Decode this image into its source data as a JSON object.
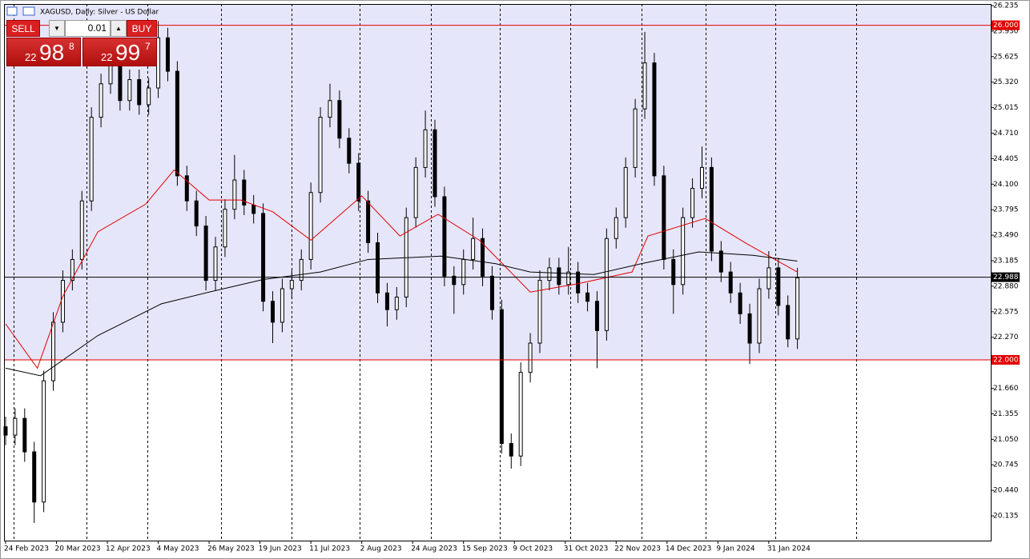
{
  "chart_data": {
    "type": "candlestick",
    "title": "XAGUSD, Daily:  Silver - US Dollar",
    "x": [
      0,
      3,
      6,
      9,
      12,
      15,
      18,
      21,
      24,
      27,
      30,
      33,
      36,
      39,
      42,
      45,
      48,
      51,
      54,
      57,
      60,
      63,
      66,
      69,
      72,
      75,
      78,
      81,
      84,
      87,
      90,
      93,
      96,
      99,
      102,
      105,
      108,
      111,
      114,
      117,
      120,
      123,
      126,
      129,
      132,
      135,
      138,
      141,
      144,
      147,
      150,
      153,
      156,
      159,
      162,
      165,
      168,
      171,
      174,
      177,
      180,
      183,
      186,
      189,
      192,
      195,
      198,
      201,
      204,
      207,
      210,
      213,
      216,
      219,
      222,
      225,
      228,
      231,
      234,
      237,
      240,
      243,
      246,
      249
    ],
    "open": [
      21.2,
      21.1,
      21.3,
      20.9,
      20.3,
      21.75,
      22.45,
      22.95,
      23.2,
      23.9,
      24.9,
      25.3,
      25.55,
      25.1,
      25.35,
      25.05,
      25.25,
      25.85,
      25.45,
      24.2,
      23.9,
      23.6,
      22.95,
      23.35,
      23.8,
      24.15,
      23.85,
      23.75,
      22.7,
      22.45,
      22.85,
      22.95,
      23.2,
      24.0,
      24.9,
      25.1,
      24.65,
      24.35,
      23.9,
      23.4,
      22.8,
      22.6,
      22.75,
      23.7,
      24.3,
      24.75,
      23.95,
      23.0,
      22.9,
      23.2,
      23.45,
      23.0,
      22.6,
      21.0,
      20.85,
      21.85,
      22.2,
      22.95,
      23.1,
      22.9,
      23.05,
      22.8,
      22.7,
      22.35,
      23.45,
      23.7,
      24.3,
      25.0,
      25.55,
      24.2,
      23.2,
      22.9,
      23.7,
      24.05,
      24.3,
      23.3,
      23.05,
      22.8,
      22.55,
      22.2,
      22.85,
      23.1,
      22.65,
      22.25
    ],
    "high": [
      21.32,
      21.42,
      21.42,
      21.02,
      21.87,
      22.57,
      23.07,
      23.32,
      24.02,
      25.02,
      25.42,
      25.67,
      25.67,
      25.47,
      25.47,
      25.37,
      26.05,
      25.97,
      25.57,
      24.32,
      24.02,
      23.72,
      23.47,
      23.92,
      24.45,
      24.27,
      23.97,
      23.87,
      22.82,
      22.97,
      23.07,
      23.32,
      24.12,
      25.02,
      25.3,
      25.22,
      24.77,
      24.47,
      24.02,
      23.52,
      22.92,
      22.87,
      23.82,
      24.42,
      24.98,
      24.87,
      24.07,
      23.12,
      23.32,
      23.7,
      23.57,
      23.12,
      22.72,
      21.12,
      21.97,
      22.32,
      23.07,
      23.22,
      23.22,
      23.35,
      23.17,
      22.92,
      22.82,
      23.57,
      23.82,
      24.42,
      25.12,
      25.92,
      25.67,
      24.32,
      23.32,
      23.82,
      24.17,
      24.55,
      24.42,
      23.42,
      23.17,
      22.92,
      22.67,
      22.97,
      23.3,
      23.22,
      22.77,
      23.1
    ],
    "low": [
      20.98,
      20.98,
      20.78,
      20.05,
      20.18,
      21.63,
      22.33,
      22.83,
      23.08,
      23.78,
      24.78,
      25.18,
      24.98,
      24.98,
      24.93,
      24.93,
      25.13,
      25.33,
      24.08,
      23.78,
      23.48,
      22.83,
      22.83,
      23.23,
      23.68,
      23.73,
      23.63,
      22.58,
      22.2,
      22.33,
      22.73,
      22.83,
      23.08,
      23.88,
      24.78,
      24.53,
      24.23,
      23.78,
      23.28,
      22.68,
      22.4,
      22.48,
      22.63,
      23.58,
      24.18,
      23.83,
      22.88,
      22.55,
      22.78,
      23.08,
      22.88,
      22.48,
      20.88,
      20.7,
      20.73,
      21.73,
      22.08,
      22.83,
      22.78,
      22.78,
      22.68,
      22.58,
      21.9,
      22.23,
      23.33,
      23.58,
      24.18,
      24.88,
      24.08,
      23.08,
      22.55,
      22.78,
      23.58,
      23.93,
      23.18,
      22.93,
      22.68,
      22.43,
      21.95,
      22.08,
      22.73,
      22.53,
      22.15,
      22.13
    ],
    "close": [
      21.1,
      21.3,
      20.9,
      20.3,
      21.75,
      22.45,
      22.95,
      23.2,
      23.9,
      24.9,
      25.3,
      25.55,
      25.1,
      25.35,
      25.05,
      25.25,
      25.85,
      25.45,
      24.2,
      23.9,
      23.6,
      22.95,
      23.35,
      23.8,
      24.15,
      23.85,
      23.75,
      22.7,
      22.45,
      22.85,
      22.95,
      23.2,
      24.0,
      24.9,
      25.1,
      24.65,
      24.35,
      23.9,
      23.4,
      22.8,
      22.6,
      22.75,
      23.7,
      24.3,
      24.75,
      23.95,
      23.0,
      22.9,
      23.2,
      23.45,
      23.0,
      22.6,
      21.0,
      20.85,
      21.85,
      22.2,
      22.95,
      23.1,
      22.9,
      23.05,
      22.8,
      22.7,
      22.35,
      23.45,
      23.7,
      24.3,
      25.0,
      25.55,
      24.2,
      23.2,
      22.9,
      23.7,
      24.05,
      24.3,
      23.3,
      23.05,
      22.8,
      22.55,
      22.2,
      22.85,
      23.1,
      22.65,
      22.25,
      22.98
    ],
    "candle_color": "#000000",
    "lines": [
      {
        "color": "#e00000",
        "x": [
          0,
          10,
          18,
          29,
          44,
          53,
          64,
          74,
          84,
          96,
          112,
          124,
          136,
          149,
          165,
          180,
          197,
          202,
          220,
          233,
          249
        ],
        "values": [
          22.43,
          21.9,
          22.76,
          23.53,
          23.86,
          24.27,
          23.91,
          23.91,
          23.77,
          23.43,
          23.96,
          23.48,
          23.74,
          23.43,
          22.81,
          22.91,
          23.05,
          23.48,
          23.69,
          23.39,
          23.05
        ]
      },
      {
        "color": "#000000",
        "x": [
          0,
          11,
          29,
          49,
          64,
          81,
          99,
          114,
          137,
          154,
          165,
          185,
          200,
          218,
          235,
          249
        ],
        "values": [
          21.9,
          21.81,
          22.29,
          22.67,
          22.81,
          22.96,
          23.05,
          23.2,
          23.24,
          23.15,
          23.05,
          23.02,
          23.15,
          23.29,
          23.25,
          23.18
        ]
      }
    ],
    "levels": [
      {
        "value": 26,
        "label": "26.000",
        "color": "#e00000"
      },
      {
        "value": 22,
        "label": "22.000",
        "color": "#e00000"
      },
      {
        "value": 22.988,
        "label": "22.988",
        "color": "#000000"
      }
    ],
    "zone_color": "#e6e6fa",
    "xlim": [
      -0.5,
      309.8
    ],
    "ylim": [
      19.839,
      26.254
    ],
    "xticks": [
      {
        "value": 0,
        "label": "24 Feb 2023"
      },
      {
        "value": 16,
        "label": "20 Mar 2023"
      },
      {
        "value": 32,
        "label": "12 Apr 2023"
      },
      {
        "value": 48,
        "label": "4 May 2023"
      },
      {
        "value": 64,
        "label": "26 May 2023"
      },
      {
        "value": 80,
        "label": "19 Jun 2023"
      },
      {
        "value": 96,
        "label": "11 Jul 2023"
      },
      {
        "value": 112,
        "label": "2 Aug 2023"
      },
      {
        "value": 128,
        "label": "24 Aug 2023"
      },
      {
        "value": 144,
        "label": "15 Sep 2023"
      },
      {
        "value": 160,
        "label": "9 Oct 2023"
      },
      {
        "value": 176,
        "label": "31 Oct 2023"
      },
      {
        "value": 192,
        "label": "22 Nov 2023"
      },
      {
        "value": 208,
        "label": "14 Dec 2023"
      },
      {
        "value": 224,
        "label": "9 Jan 2024"
      },
      {
        "value": 240,
        "label": "31 Jan 2024"
      }
    ],
    "yticks": [
      26.235,
      {
        "value": 25.93,
        "label": "25.930"
      },
      25.625,
      {
        "value": 25.32,
        "label": "25.320"
      },
      25.015,
      {
        "value": 24.71,
        "label": "24.710"
      },
      24.405,
      {
        "value": 24.1,
        "label": "24.100"
      },
      23.795,
      {
        "value": 23.49,
        "label": "23.490"
      },
      23.185,
      {
        "value": 22.88,
        "label": "22.880"
      },
      22.575,
      {
        "value": 22.27,
        "label": "22.270"
      },
      {
        "value": 21.66,
        "label": "21.660"
      },
      21.355,
      {
        "value": 21.05,
        "label": "21.050"
      },
      20.745,
      {
        "value": 20.44,
        "label": "20.440"
      },
      20.135
    ]
  },
  "panel": {
    "sell": "SELL",
    "lot": "0.01",
    "buy": "BUY",
    "bid": {
      "big": "22",
      "main": "98",
      "sup": "8"
    },
    "ask": {
      "big": "22",
      "main": "99",
      "sup": "7"
    }
  }
}
